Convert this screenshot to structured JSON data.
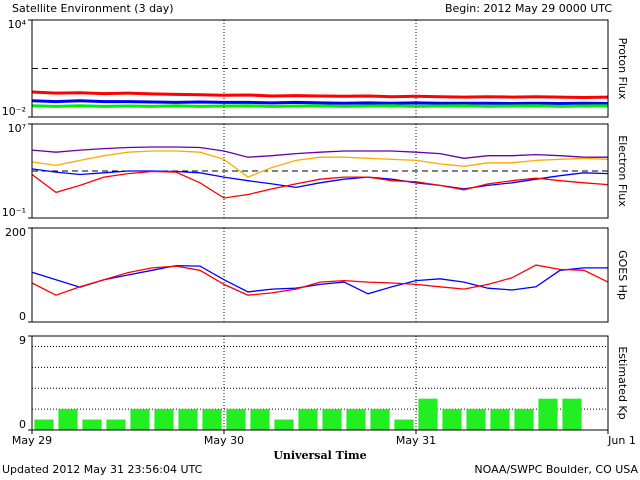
{
  "title": "Satellite Environment (3 day)",
  "begin": "Begin:  2012 May 29 0000 UTC",
  "updated": "Updated 2012 May 31 23:56:04 UTC",
  "credit": "NOAA/SWPC Boulder, CO USA",
  "x_axis": {
    "label": "Universal Time",
    "xlim": [
      0,
      72
    ],
    "xticks": [
      {
        "value": 0,
        "label": "May 29"
      },
      {
        "value": 24,
        "label": "May 30"
      },
      {
        "value": 48,
        "label": "May 31"
      },
      {
        "value": 72,
        "label": "Jun 1"
      }
    ]
  },
  "chart_data": [
    {
      "type": "line",
      "ylabel": "Proton Flux",
      "yscale": "log",
      "ylim": [
        0.01,
        10000
      ],
      "yticks": [
        {
          "value": 0.01,
          "label": "10⁻²"
        },
        {
          "value": 10000,
          "label": "10⁴"
        }
      ],
      "threshold": 10,
      "x": [
        0,
        3,
        6,
        9,
        12,
        15,
        18,
        21,
        24,
        27,
        30,
        33,
        36,
        39,
        42,
        45,
        48,
        51,
        54,
        57,
        60,
        63,
        66,
        69,
        72
      ],
      "series": [
        {
          "color": "#ff0000",
          "values": [
            0.35,
            0.3,
            0.32,
            0.28,
            0.3,
            0.27,
            0.25,
            0.24,
            0.22,
            0.23,
            0.2,
            0.21,
            0.2,
            0.19,
            0.2,
            0.18,
            0.19,
            0.18,
            0.17,
            0.18,
            0.17,
            0.18,
            0.17,
            0.16,
            0.17
          ]
        },
        {
          "color": "#0000ff",
          "values": [
            0.1,
            0.09,
            0.1,
            0.09,
            0.09,
            0.085,
            0.08,
            0.085,
            0.08,
            0.08,
            0.075,
            0.08,
            0.075,
            0.07,
            0.075,
            0.07,
            0.075,
            0.07,
            0.07,
            0.07,
            0.068,
            0.07,
            0.068,
            0.07,
            0.068
          ]
        },
        {
          "color": "#00ee00",
          "values": [
            0.05,
            0.045,
            0.05,
            0.045,
            0.048,
            0.045,
            0.05,
            0.045,
            0.048,
            0.05,
            0.045,
            0.048,
            0.05,
            0.045,
            0.048,
            0.05,
            0.045,
            0.048,
            0.05,
            0.045,
            0.048,
            0.05,
            0.045,
            0.048,
            0.05
          ]
        }
      ]
    },
    {
      "type": "line",
      "ylabel": "Electron Flux",
      "yscale": "log",
      "ylim": [
        0.1,
        10000000
      ],
      "yticks": [
        {
          "value": 0.1,
          "label": "10⁻¹"
        },
        {
          "value": 10000000,
          "label": "10⁷"
        }
      ],
      "threshold": 1000,
      "x": [
        0,
        3,
        6,
        9,
        12,
        15,
        18,
        21,
        24,
        27,
        30,
        33,
        36,
        39,
        42,
        45,
        48,
        51,
        54,
        57,
        60,
        63,
        66,
        69,
        72
      ],
      "series": [
        {
          "color": "#6600aa",
          "values": [
            60000,
            40000,
            60000,
            80000,
            100000,
            110000,
            110000,
            100000,
            50000,
            15000,
            20000,
            30000,
            40000,
            50000,
            50000,
            50000,
            40000,
            30000,
            12000,
            20000,
            20000,
            25000,
            20000,
            15000,
            15000
          ]
        },
        {
          "color": "#ffaa00",
          "values": [
            6000,
            3000,
            8000,
            20000,
            40000,
            50000,
            50000,
            40000,
            10000,
            300,
            2000,
            8000,
            15000,
            15000,
            12000,
            10000,
            8000,
            4000,
            2500,
            5000,
            5000,
            8000,
            10000,
            12000,
            10000
          ]
        },
        {
          "color": "#0000ff",
          "values": [
            1500,
            800,
            500,
            700,
            1000,
            1000,
            900,
            700,
            300,
            150,
            80,
            40,
            100,
            200,
            300,
            200,
            100,
            60,
            30,
            60,
            100,
            200,
            400,
            700,
            600
          ]
        },
        {
          "color": "#ff0000",
          "values": [
            500,
            15,
            60,
            300,
            600,
            900,
            800,
            100,
            5,
            10,
            30,
            80,
            200,
            300,
            300,
            150,
            120,
            60,
            25,
            80,
            150,
            250,
            150,
            100,
            70
          ]
        }
      ]
    },
    {
      "type": "line",
      "ylabel": "GOES Hp",
      "ylim": [
        0,
        200
      ],
      "yticks": [
        0,
        200
      ],
      "x": [
        0,
        3,
        6,
        9,
        12,
        15,
        18,
        21,
        24,
        27,
        30,
        33,
        36,
        39,
        42,
        45,
        48,
        51,
        54,
        57,
        60,
        63,
        66,
        69,
        72
      ],
      "series": [
        {
          "color": "#0000ff",
          "values": [
            106,
            90,
            74,
            90,
            100,
            110,
            120,
            119,
            90,
            64,
            70,
            72,
            80,
            85,
            60,
            75,
            88,
            92,
            85,
            72,
            68,
            75,
            110,
            115,
            115
          ]
        },
        {
          "color": "#ff0000",
          "values": [
            83,
            57,
            75,
            90,
            105,
            115,
            119,
            110,
            80,
            57,
            62,
            70,
            85,
            88,
            85,
            83,
            80,
            75,
            70,
            80,
            94,
            121,
            112,
            110,
            85
          ]
        }
      ]
    },
    {
      "type": "bar",
      "ylabel": "Estimated Kp",
      "ylim": [
        0,
        9
      ],
      "yticks": [
        0,
        9
      ],
      "gridlines": [
        2,
        4,
        6,
        8
      ],
      "color": "#22ee22",
      "bar_hours": 3,
      "x": [
        0,
        3,
        6,
        9,
        12,
        15,
        18,
        21,
        24,
        27,
        30,
        33,
        36,
        39,
        42,
        45,
        48,
        51,
        54,
        57,
        60,
        63,
        66
      ],
      "values": [
        1,
        2,
        1,
        1,
        2,
        2,
        2,
        2,
        2,
        2,
        1,
        2,
        2,
        2,
        2,
        1,
        3,
        2,
        2,
        2,
        2,
        3,
        3
      ]
    }
  ]
}
